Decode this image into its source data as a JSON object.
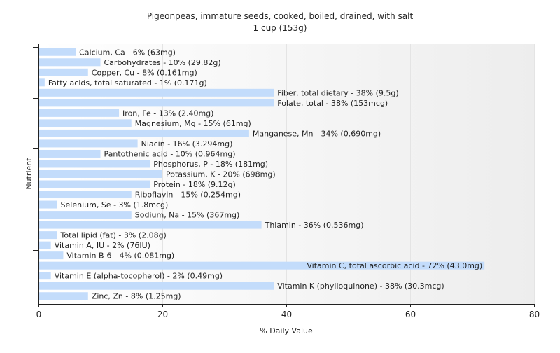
{
  "chart_data": {
    "type": "bar",
    "orientation": "horizontal",
    "title": "Pigeonpeas, immature seeds, cooked, boiled, drained, with salt",
    "subtitle": "1 cup (153g)",
    "xlabel": "% Daily Value",
    "ylabel": "Nutrient",
    "xlim": [
      0,
      80
    ],
    "x_ticks": [
      0,
      20,
      40,
      60,
      80
    ],
    "grid": true,
    "categories": [
      "Calcium, Ca",
      "Carbohydrates",
      "Copper, Cu",
      "Fatty acids, total saturated",
      "Fiber, total dietary",
      "Folate, total",
      "Iron, Fe",
      "Magnesium, Mg",
      "Manganese, Mn",
      "Niacin",
      "Pantothenic acid",
      "Phosphorus, P",
      "Potassium, K",
      "Protein",
      "Riboflavin",
      "Selenium, Se",
      "Sodium, Na",
      "Thiamin",
      "Total lipid (fat)",
      "Vitamin A, IU",
      "Vitamin B-6",
      "Vitamin C, total ascorbic acid",
      "Vitamin E (alpha-tocopherol)",
      "Vitamin K (phylloquinone)",
      "Zinc, Zn"
    ],
    "values": [
      6,
      10,
      8,
      1,
      38,
      38,
      13,
      15,
      34,
      16,
      10,
      18,
      20,
      18,
      15,
      3,
      15,
      36,
      3,
      2,
      4,
      72,
      2,
      38,
      8
    ],
    "labels": [
      "Calcium, Ca - 6% (63mg)",
      "Carbohydrates - 10% (29.82g)",
      "Copper, Cu - 8% (0.161mg)",
      "Fatty acids, total saturated - 1% (0.171g)",
      "Fiber, total dietary - 38% (9.5g)",
      "Folate, total - 38% (153mcg)",
      "Iron, Fe - 13% (2.40mg)",
      "Magnesium, Mg - 15% (61mg)",
      "Manganese, Mn - 34% (0.690mg)",
      "Niacin - 16% (3.294mg)",
      "Pantothenic acid - 10% (0.964mg)",
      "Phosphorus, P - 18% (181mg)",
      "Potassium, K - 20% (698mg)",
      "Protein - 18% (9.12g)",
      "Riboflavin - 15% (0.254mg)",
      "Selenium, Se - 3% (1.8mcg)",
      "Sodium, Na - 15% (367mg)",
      "Thiamin - 36% (0.536mg)",
      "Total lipid (fat) - 3% (2.08g)",
      "Vitamin A, IU - 2% (76IU)",
      "Vitamin B-6 - 4% (0.081mg)",
      "Vitamin C, total ascorbic acid - 72% (43.0mg)",
      "Vitamin E (alpha-tocopherol) - 2% (0.49mg)",
      "Vitamin K (phylloquinone) - 38% (30.3mcg)",
      "Zinc, Zn - 8% (1.25mg)"
    ],
    "colors": {
      "bar": "#c3dcfb",
      "text": "#222222",
      "axis": "#222222",
      "grid": "#e4e4e4",
      "plot_gradient_start": "#ffffff",
      "plot_gradient_end": "#ededed"
    }
  }
}
